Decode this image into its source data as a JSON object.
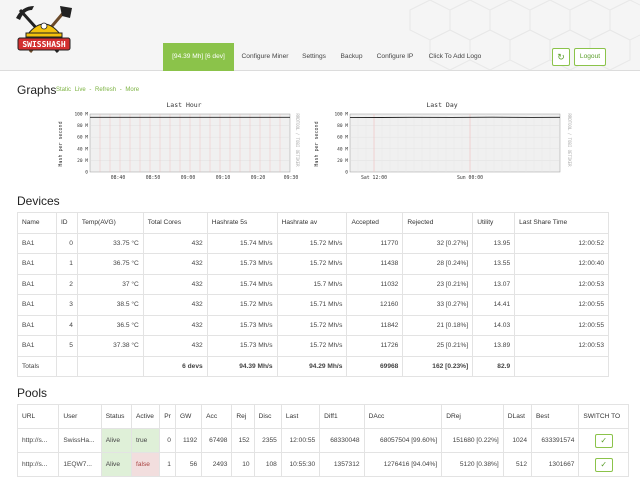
{
  "header": {
    "logo_text": "SWISSHASH",
    "nav": [
      {
        "label": "[94.39 Mh] [6 dev]",
        "active": true
      },
      {
        "label": "Configure Miner"
      },
      {
        "label": "Settings"
      },
      {
        "label": "Backup"
      },
      {
        "label": "Configure IP"
      },
      {
        "label": "Click To Add Logo"
      }
    ],
    "refresh_icon": "refresh-icon",
    "logout_label": "Logout",
    "accent_color": "#8bc34a"
  },
  "graphs": {
    "title": "Graphs",
    "links": [
      "Static",
      "Live",
      "-",
      "Refresh",
      "-",
      "More"
    ],
    "last_hour": {
      "title": "Last Hour",
      "ylabel": "Hash per second",
      "yticks": [
        "0",
        "20 M",
        "40 M",
        "60 M",
        "80 M",
        "100 M"
      ],
      "xticks": [
        "08:40",
        "08:50",
        "09:00",
        "09:10",
        "09:20",
        "09:30"
      ],
      "side_label": "RRDTOOL / TOBI OETIKER"
    },
    "last_day": {
      "title": "Last Day",
      "ylabel": "Hash per second",
      "yticks": [
        "0",
        "20 M",
        "40 M",
        "60 M",
        "80 M",
        "100 M"
      ],
      "xticks": [
        "Sat 12:00",
        "Sun 00:00"
      ],
      "side_label": "RRDTOOL / TOBI OETIKER"
    }
  },
  "devices": {
    "title": "Devices",
    "columns": [
      "Name",
      "ID",
      "Temp(AVG)",
      "Total Cores",
      "Hashrate 5s",
      "Hashrate av",
      "Accepted",
      "Rejected",
      "Utility",
      "Last Share Time"
    ],
    "rows": [
      [
        "BA1",
        "0",
        "33.75 °C",
        "432",
        "15.74 Mh/s",
        "15.72 Mh/s",
        "11770",
        "32 [0.27%]",
        "13.95",
        "12:00:52"
      ],
      [
        "BA1",
        "1",
        "36.75 °C",
        "432",
        "15.73 Mh/s",
        "15.72 Mh/s",
        "11438",
        "28 [0.24%]",
        "13.55",
        "12:00:40"
      ],
      [
        "BA1",
        "2",
        "37 °C",
        "432",
        "15.74 Mh/s",
        "15.7 Mh/s",
        "11032",
        "23 [0.21%]",
        "13.07",
        "12:00:53"
      ],
      [
        "BA1",
        "3",
        "38.5 °C",
        "432",
        "15.72 Mh/s",
        "15.71 Mh/s",
        "12160",
        "33 [0.27%]",
        "14.41",
        "12:00:55"
      ],
      [
        "BA1",
        "4",
        "36.5 °C",
        "432",
        "15.73 Mh/s",
        "15.72 Mh/s",
        "11842",
        "21 [0.18%]",
        "14.03",
        "12:00:55"
      ],
      [
        "BA1",
        "5",
        "37.38 °C",
        "432",
        "15.73 Mh/s",
        "15.72 Mh/s",
        "11726",
        "25 [0.21%]",
        "13.89",
        "12:00:53"
      ]
    ],
    "totals": {
      "label": "Totals",
      "cores": "6 devs",
      "hashrate_5s": "94.39 Mh/s",
      "hashrate_av": "94.29 Mh/s",
      "accepted": "69968",
      "rejected": "162 [0.23%]",
      "utility": "82.9"
    }
  },
  "pools": {
    "title": "Pools",
    "columns": [
      "URL",
      "User",
      "Status",
      "Active",
      "Pr",
      "GW",
      "Acc",
      "Rej",
      "Disc",
      "Last",
      "Diff1",
      "DAcc",
      "DRej",
      "DLast",
      "Best",
      "SWITCH TO"
    ],
    "rows": [
      [
        "http://s...",
        "SwissHa...",
        "Alive",
        "true",
        "0",
        "1192",
        "67498",
        "152",
        "2355",
        "12:00:55",
        "68330048",
        "68057504 [99.60%]",
        "151680 [0.22%]",
        "1024",
        "633391574"
      ],
      [
        "http://s...",
        "1EQW7...",
        "Alive",
        "false",
        "1",
        "56",
        "2493",
        "10",
        "108",
        "10:55:30",
        "1357312",
        "1276416 [94.04%]",
        "5120 [0.38%]",
        "512",
        "1301667"
      ]
    ],
    "switch_icon": "check-icon"
  }
}
